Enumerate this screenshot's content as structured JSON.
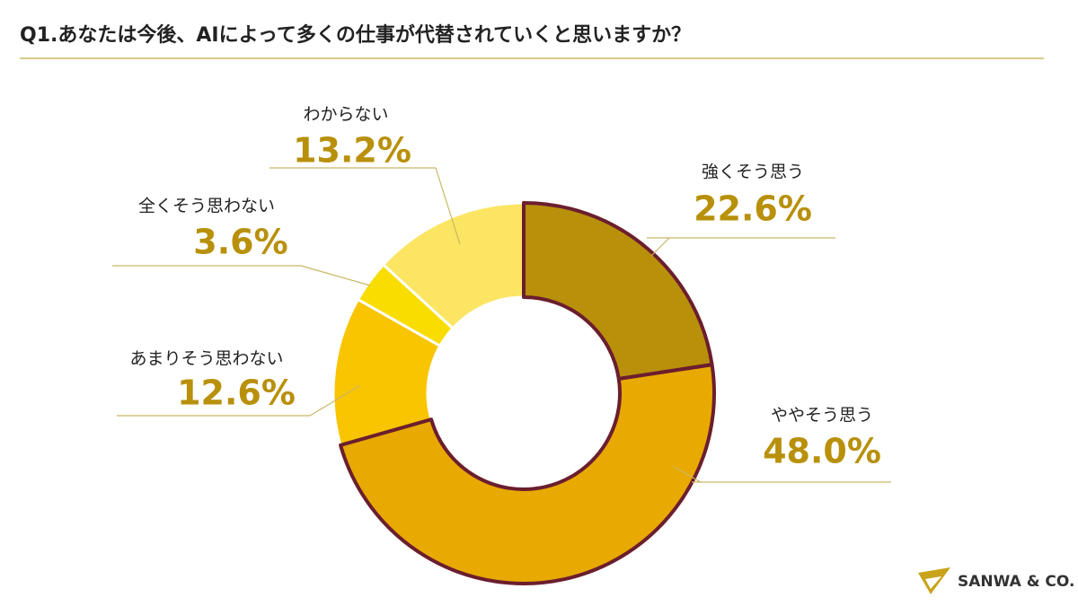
{
  "chart_data": {
    "type": "donut",
    "title": "Q1.あなたは今後、AIによって多くの仕事が代替されていくと思いますか？",
    "categories": [
      "強くそう思う",
      "ややそう思う",
      "あまりそう思わない",
      "全くそう思わない",
      "わからない"
    ],
    "values": [
      22.6,
      48.0,
      12.6,
      3.6,
      13.2
    ],
    "value_labels": [
      "22.6%",
      "48.0%",
      "12.6%",
      "3.6%",
      "13.2%"
    ],
    "colors": [
      "#b8900a",
      "#e8a900",
      "#f9c400",
      "#f9dd00",
      "#fbe563"
    ],
    "outlined": [
      true,
      true,
      false,
      false,
      false
    ],
    "outline_color": "#6b1e2e"
  },
  "logo": "SANWA & CO."
}
